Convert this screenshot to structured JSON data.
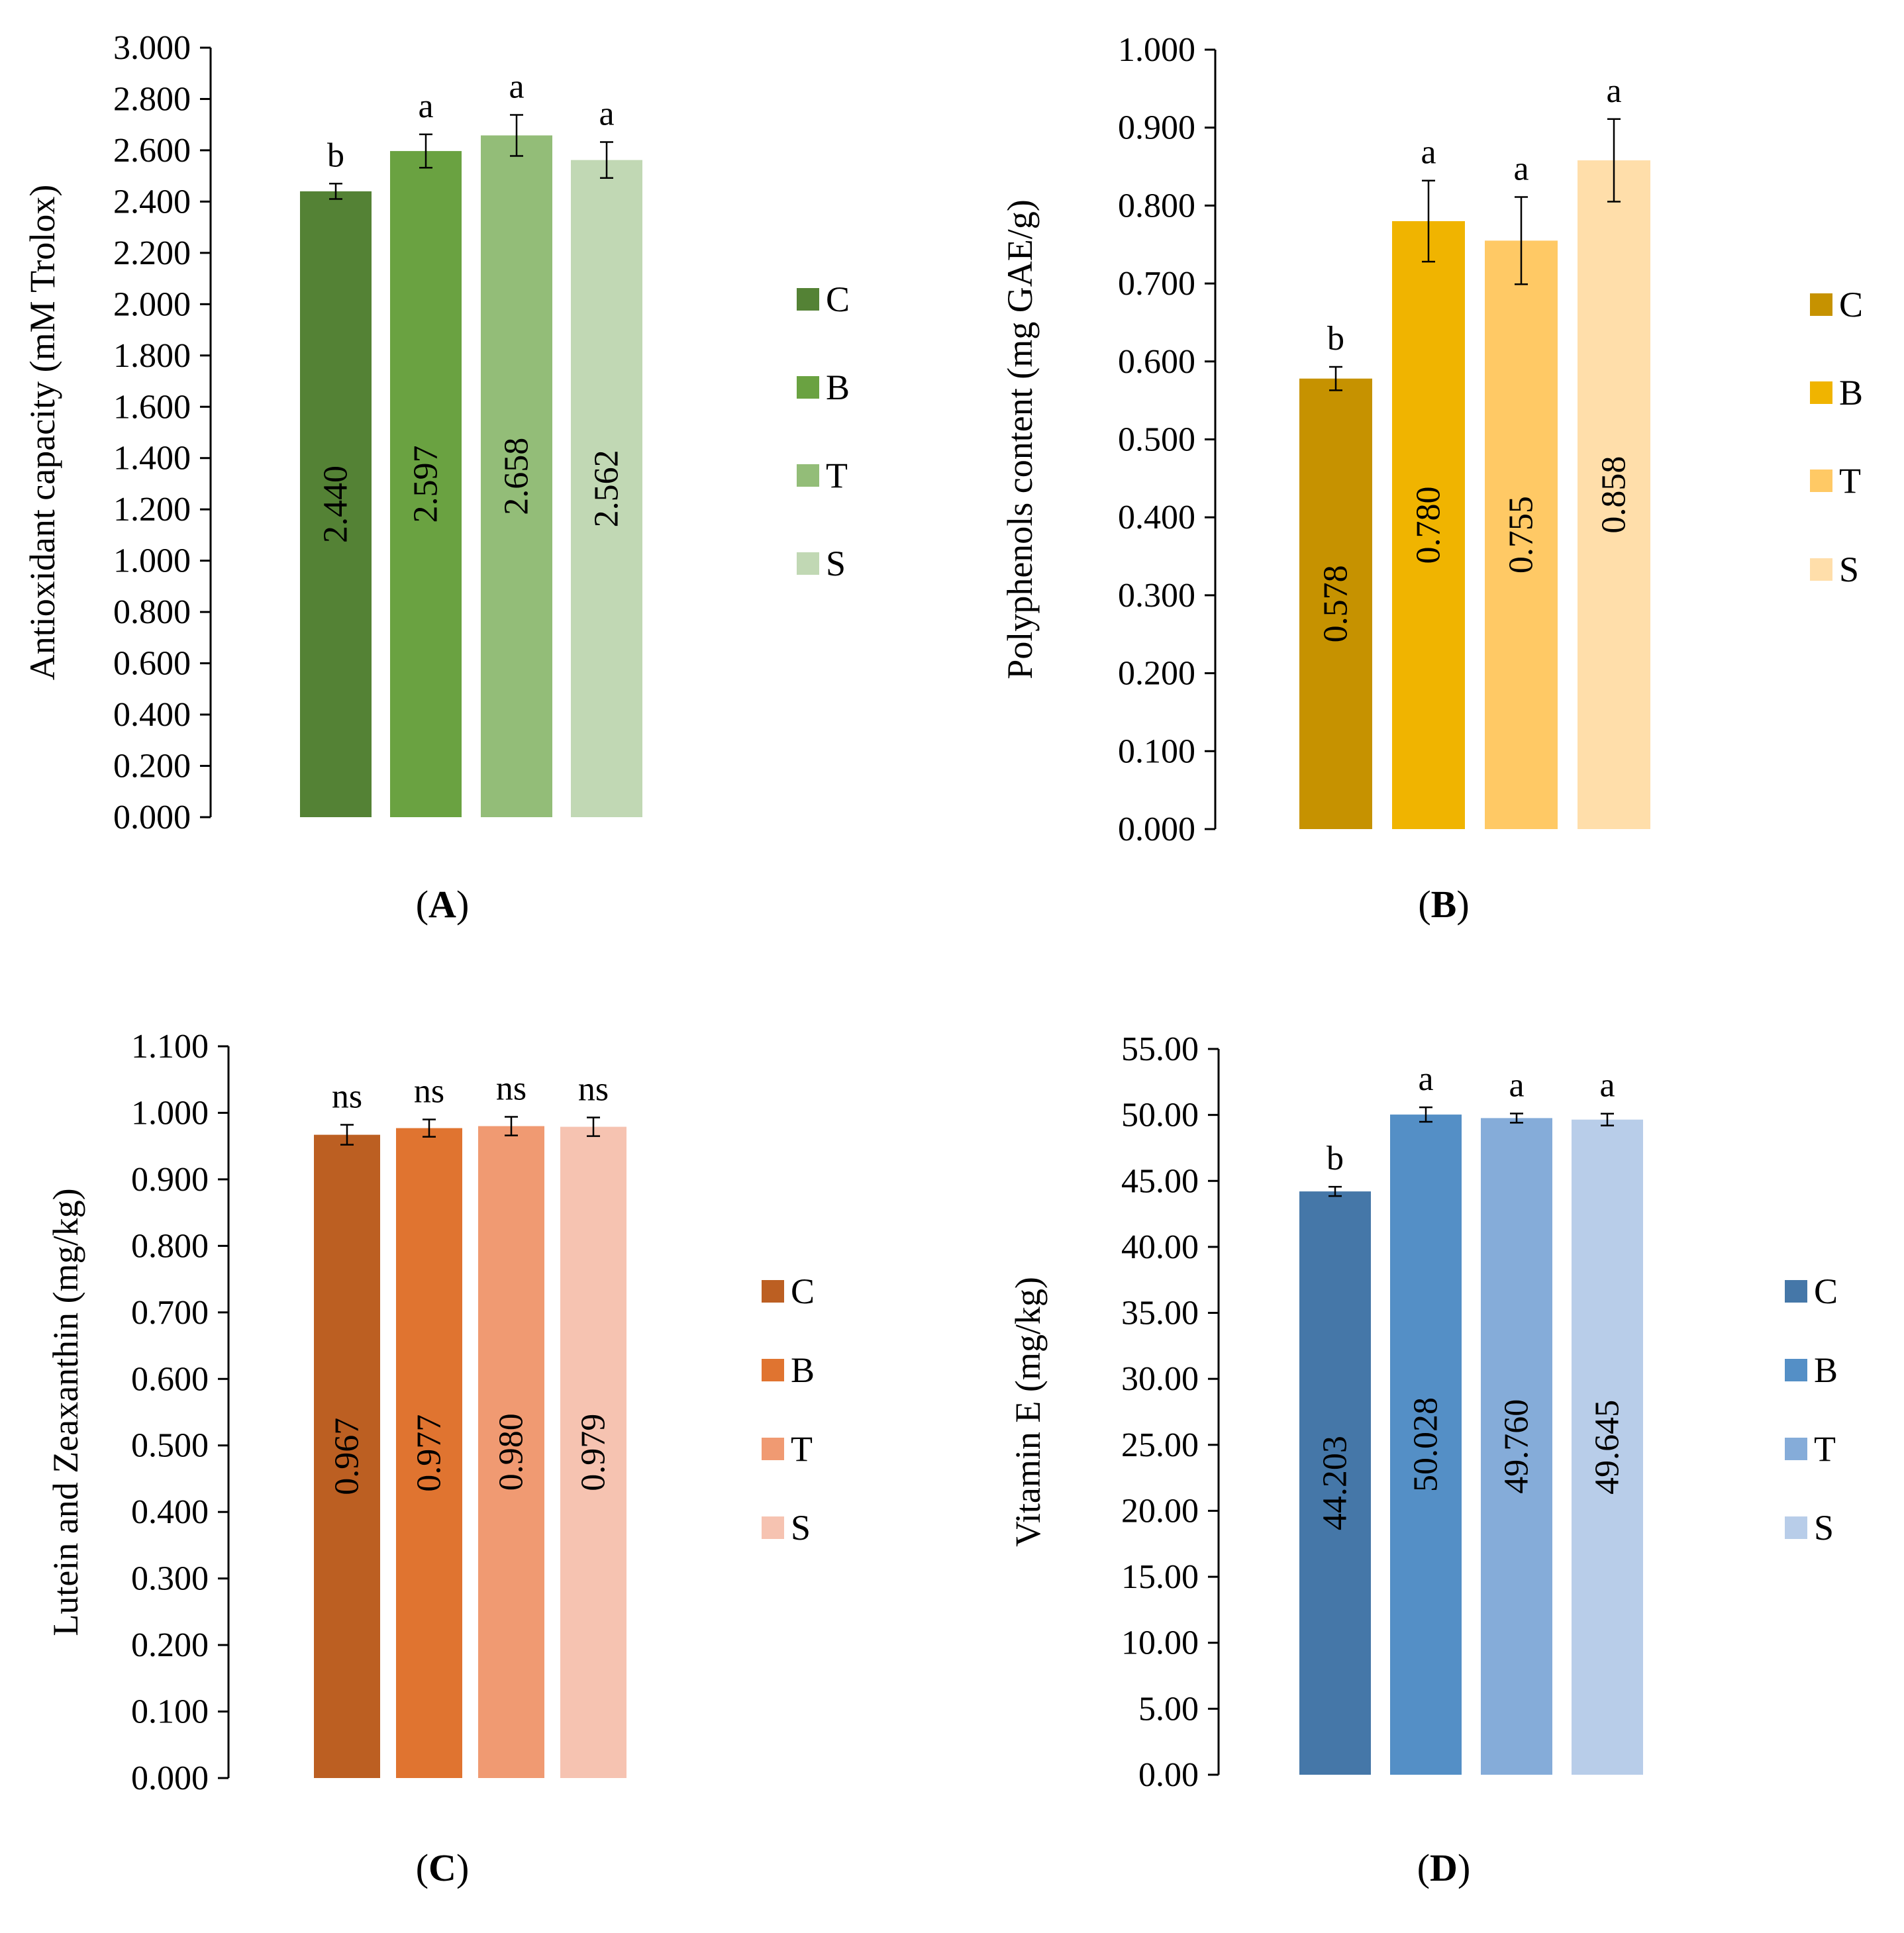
{
  "chart_data": [
    {
      "type": "bar",
      "panel": "A",
      "caption_open": "(",
      "caption_letter": "A",
      "caption_close": ")",
      "ylabel": "Antioxidant capacity (mM Trolox)",
      "ylim": [
        0,
        3
      ],
      "ticks": [
        "0.000",
        "0.200",
        "0.400",
        "0.600",
        "0.800",
        "1.000",
        "1.200",
        "1.400",
        "1.600",
        "1.800",
        "2.000",
        "2.200",
        "2.400",
        "2.600",
        "2.800",
        "3.000"
      ],
      "categories": [
        "C",
        "B",
        "T",
        "S"
      ],
      "values": [
        2.44,
        2.597,
        2.658,
        2.562
      ],
      "value_labels": [
        "2.440",
        "2.597",
        "2.658",
        "2.562"
      ],
      "errors": [
        0.03,
        0.065,
        0.08,
        0.07
      ],
      "significance": [
        "b",
        "a",
        "a",
        "a"
      ],
      "colors": [
        "#548235",
        "#6aa241",
        "#93bd78",
        "#c1d8b4"
      ],
      "legend": [
        "C",
        "B",
        "T",
        "S"
      ]
    },
    {
      "type": "bar",
      "panel": "B",
      "caption_open": "(",
      "caption_letter": "B",
      "caption_close": ")",
      "ylabel": "Polyphenols content (mg GAE/g)",
      "ylim": [
        0,
        1
      ],
      "ticks": [
        "0.000",
        "0.100",
        "0.200",
        "0.300",
        "0.400",
        "0.500",
        "0.600",
        "0.700",
        "0.800",
        "0.900",
        "1.000"
      ],
      "categories": [
        "C",
        "B",
        "T",
        "S"
      ],
      "values": [
        0.578,
        0.78,
        0.755,
        0.858
      ],
      "value_labels": [
        "0.578",
        "0.780",
        "0.755",
        "0.858"
      ],
      "errors": [
        0.015,
        0.052,
        0.056,
        0.053
      ],
      "significance": [
        "b",
        "a",
        "a",
        "a"
      ],
      "colors": [
        "#c69200",
        "#f0b400",
        "#ffc965",
        "#ffdeaa"
      ],
      "legend": [
        "C",
        "B",
        "T",
        "S"
      ]
    },
    {
      "type": "bar",
      "panel": "C",
      "caption_open": "(",
      "caption_letter": "C",
      "caption_close": ")",
      "ylabel": "Lutein and Zeaxanthin (mg/kg)",
      "ylim": [
        0,
        1.1
      ],
      "ticks": [
        "0.000",
        "0.100",
        "0.200",
        "0.300",
        "0.400",
        "0.500",
        "0.600",
        "0.700",
        "0.800",
        "0.900",
        "1.000",
        "1.100"
      ],
      "categories": [
        "C",
        "B",
        "T",
        "S"
      ],
      "values": [
        0.967,
        0.977,
        0.98,
        0.979
      ],
      "value_labels": [
        "0.967",
        "0.977",
        "0.980",
        "0.979"
      ],
      "errors": [
        0.015,
        0.013,
        0.014,
        0.014
      ],
      "significance": [
        "ns",
        "ns",
        "ns",
        "ns"
      ],
      "colors": [
        "#bc5f22",
        "#e07430",
        "#f09a72",
        "#f6c3b1"
      ],
      "legend": [
        "C",
        "B",
        "T",
        "S"
      ]
    },
    {
      "type": "bar",
      "panel": "D",
      "caption_open": "(",
      "caption_letter": "D",
      "caption_close": ")",
      "ylabel": "Vitamin E (mg/kg)",
      "ylim": [
        0,
        55
      ],
      "ticks": [
        "0.00",
        "5.00",
        "10.00",
        "15.00",
        "20.00",
        "25.00",
        "30.00",
        "35.00",
        "40.00",
        "45.00",
        "50.00",
        "55.00"
      ],
      "categories": [
        "C",
        "B",
        "T",
        "S"
      ],
      "values": [
        44.203,
        50.028,
        49.76,
        49.645
      ],
      "value_labels": [
        "44.203",
        "50.028",
        "49.760",
        "49.645"
      ],
      "errors": [
        0.35,
        0.55,
        0.35,
        0.45
      ],
      "significance": [
        "b",
        "a",
        "a",
        "a"
      ],
      "colors": [
        "#4577a8",
        "#548fc6",
        "#85acd9",
        "#b8cde9"
      ],
      "legend": [
        "C",
        "B",
        "T",
        "S"
      ]
    }
  ]
}
